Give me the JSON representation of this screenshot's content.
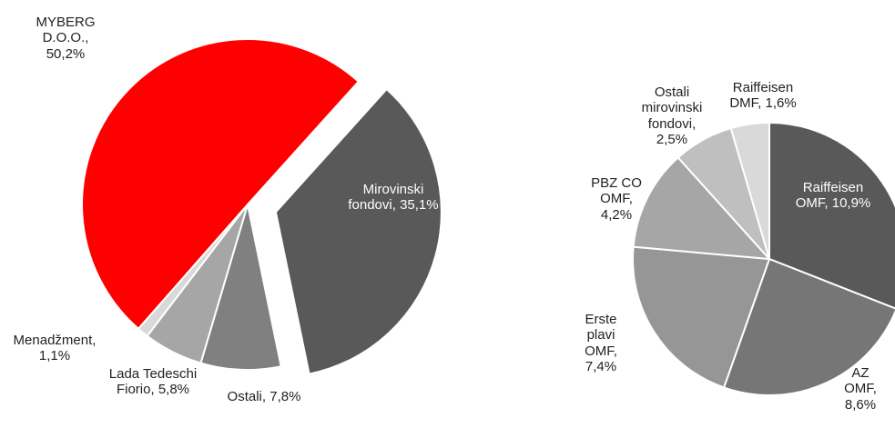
{
  "chart_data": [
    {
      "type": "pie",
      "categories": [
        "Mirovinski fondovi,",
        "Ostali,",
        "Lada Tedeschi Fiorio,",
        "Menadžment,",
        "MYBERG D.O.O.,"
      ],
      "values": [
        35.1,
        7.8,
        5.8,
        1.1,
        50.2
      ],
      "value_labels": [
        "35,1%",
        "7,8%",
        "5,8%",
        "1,1%",
        "50,2%"
      ],
      "colors": [
        "#595959",
        "#808080",
        "#a6a6a6",
        "#d9d9d9",
        "#ff0000"
      ],
      "explode": [
        true,
        false,
        false,
        false,
        false
      ]
    },
    {
      "type": "pie",
      "categories": [
        "Raiffeisen OMF,",
        "AZ OMF,",
        "Erste plavi OMF,",
        "PBZ CO OMF,",
        "Ostali mirovinski fondovi,",
        "Raiffeisen DMF,"
      ],
      "values": [
        10.9,
        8.6,
        7.4,
        4.2,
        2.5,
        1.6
      ],
      "value_labels": [
        "10,9%",
        "8,6%",
        "7,4%",
        "4,2%",
        "2,5%",
        "1,6%"
      ],
      "colors": [
        "#595959",
        "#767676",
        "#969696",
        "#a6a6a6",
        "#bfbfbf",
        "#d9d9d9"
      ],
      "explode": [
        false,
        false,
        false,
        false,
        false,
        false
      ]
    }
  ]
}
